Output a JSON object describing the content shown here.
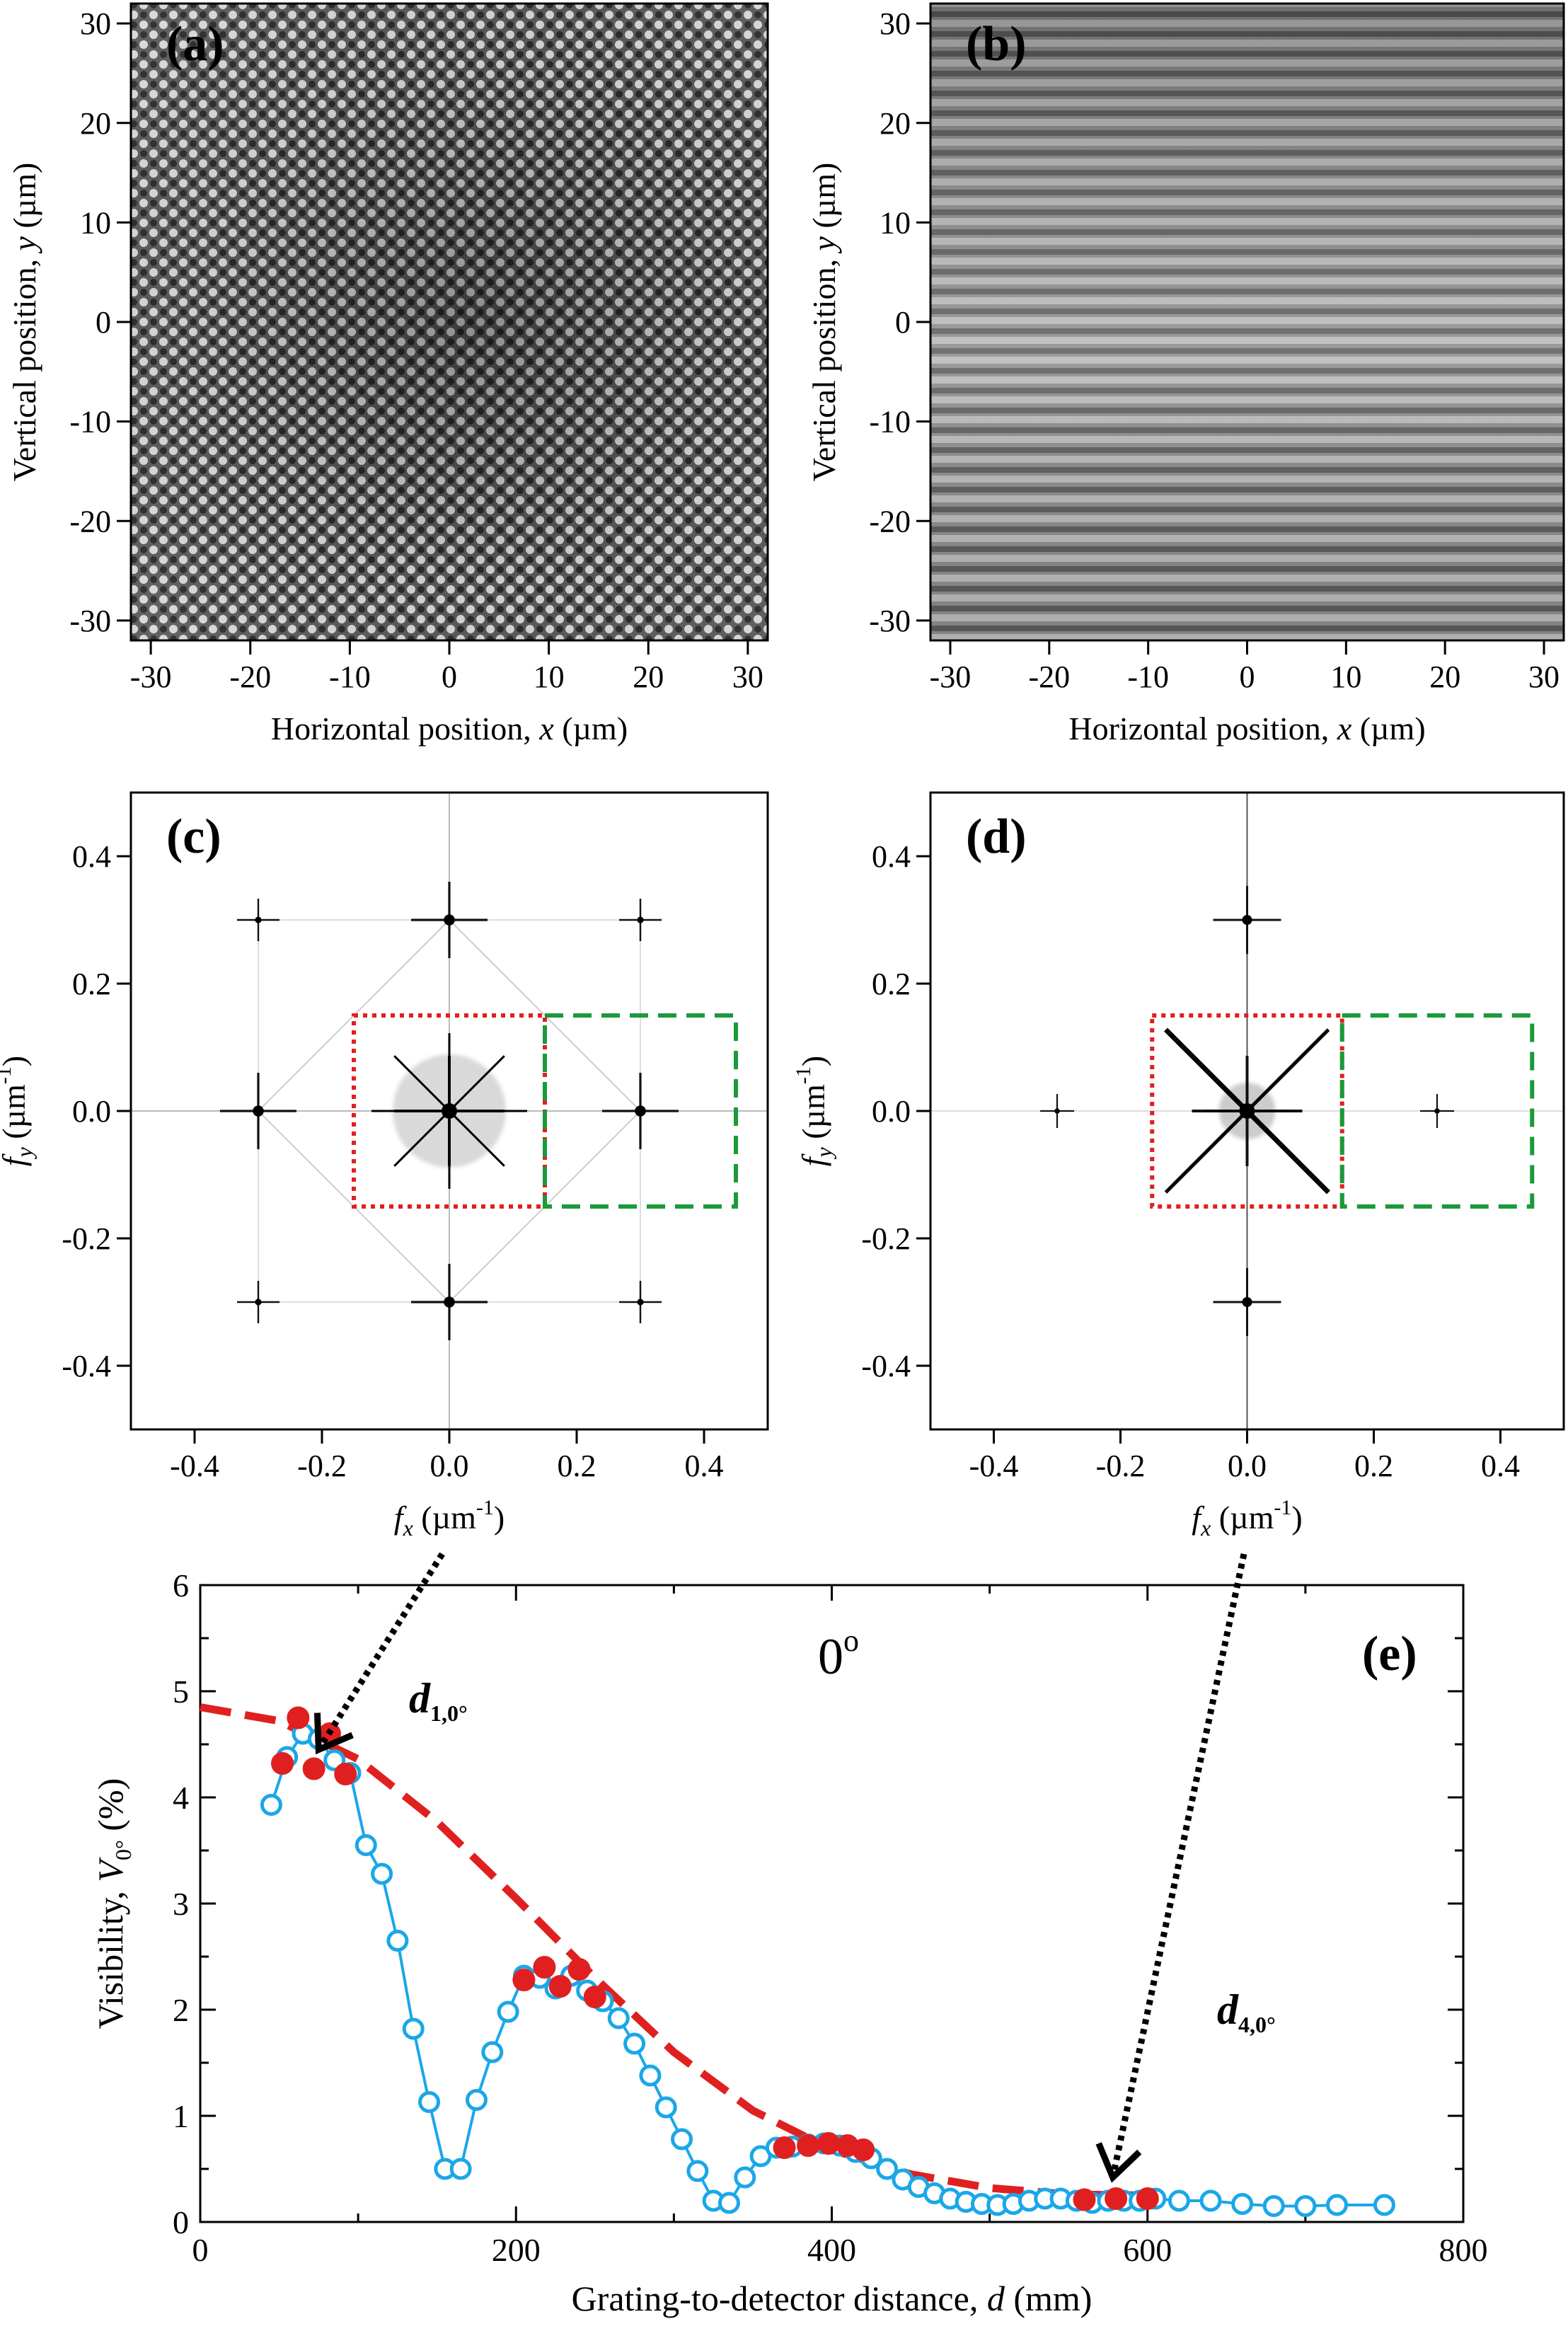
{
  "figure_description_free": true,
  "chart_data": [
    {
      "id": "a",
      "type": "heatmap",
      "panel_label": "(a)",
      "xlabel_prefix": "Horizontal position, ",
      "xlabel_var": "x",
      "xlabel_suffix": " (µm)",
      "ylabel_prefix": "Vertical position, ",
      "ylabel_var": "y",
      "ylabel_suffix": " (µm)",
      "xlim": [
        -32,
        32
      ],
      "ylim": [
        -32,
        32
      ],
      "xticks": [
        -30,
        -20,
        -10,
        0,
        10,
        20,
        30
      ],
      "yticks": [
        -30,
        -20,
        -10,
        0,
        10,
        20,
        30
      ],
      "xtick_labels": [
        "-30",
        "-20",
        "-10",
        "0",
        "10",
        "20",
        "30"
      ],
      "ytick_labels": [
        "-30",
        "-20",
        "-10",
        "0",
        "10",
        "20",
        "30"
      ],
      "pattern": "2D checkerboard grating, period ~3.4 µm"
    },
    {
      "id": "b",
      "type": "heatmap",
      "panel_label": "(b)",
      "xlabel_prefix": "Horizontal position, ",
      "xlabel_var": "x",
      "xlabel_suffix": " (µm)",
      "ylabel_prefix": "Vertical position, ",
      "ylabel_var": "y",
      "ylabel_suffix": " (µm)",
      "xlim": [
        -32,
        32
      ],
      "ylim": [
        -32,
        32
      ],
      "xticks": [
        -30,
        -20,
        -10,
        0,
        10,
        20,
        30
      ],
      "yticks": [
        -30,
        -20,
        -10,
        0,
        10,
        20,
        30
      ],
      "xtick_labels": [
        "-30",
        "-20",
        "-10",
        "0",
        "10",
        "20",
        "30"
      ],
      "ytick_labels": [
        "-30",
        "-20",
        "-10",
        "0",
        "10",
        "20",
        "30"
      ],
      "pattern": "horizontal fringes, period ~3.4 µm"
    },
    {
      "id": "c",
      "type": "heatmap",
      "panel_label": "(c)",
      "xlabel_var": "f",
      "xlabel_sub": "x",
      "xlabel_unit": " (µm",
      "xlabel_exp": "-1",
      "xlabel_close": ")",
      "ylabel_var": "f",
      "ylabel_sub": "y",
      "ylabel_unit": " (µm",
      "ylabel_exp": "-1",
      "ylabel_close": ")",
      "xlim": [
        -0.5,
        0.5
      ],
      "ylim": [
        -0.5,
        0.5
      ],
      "xticks": [
        -0.4,
        -0.2,
        0.0,
        0.2,
        0.4
      ],
      "yticks": [
        -0.4,
        -0.2,
        0.0,
        0.2,
        0.4
      ],
      "xtick_labels": [
        "-0.4",
        "-0.2",
        "0.0",
        "0.2",
        "0.4"
      ],
      "ytick_labels": [
        "-0.4",
        "-0.2",
        "0.0",
        "0.2",
        "0.4"
      ],
      "peaks": [
        [
          0,
          0,
          1.0
        ],
        [
          0.3,
          0,
          0.6
        ],
        [
          -0.3,
          0,
          0.6
        ],
        [
          0,
          0.3,
          0.6
        ],
        [
          0,
          -0.3,
          0.6
        ],
        [
          0.3,
          0.3,
          0.2
        ],
        [
          -0.3,
          0.3,
          0.2
        ],
        [
          0.3,
          -0.3,
          0.2
        ],
        [
          -0.3,
          -0.3,
          0.2
        ]
      ],
      "red_box": [
        -0.15,
        0.15,
        -0.15,
        0.15
      ],
      "green_box": [
        0.15,
        0.45,
        -0.15,
        0.15
      ],
      "red_color": "#e02020",
      "green_color": "#1a9a3a"
    },
    {
      "id": "d",
      "type": "heatmap",
      "panel_label": "(d)",
      "xlabel_var": "f",
      "xlabel_sub": "x",
      "xlabel_unit": " (µm",
      "xlabel_exp": "-1",
      "xlabel_close": ")",
      "ylabel_var": "f",
      "ylabel_sub": "y",
      "ylabel_unit": " (µm",
      "ylabel_exp": "-1",
      "ylabel_close": ")",
      "xlim": [
        -0.5,
        0.5
      ],
      "ylim": [
        -0.5,
        0.5
      ],
      "xticks": [
        -0.4,
        -0.2,
        0.0,
        0.2,
        0.4
      ],
      "yticks": [
        -0.4,
        -0.2,
        0.0,
        0.2,
        0.4
      ],
      "xtick_labels": [
        "-0.4",
        "-0.2",
        "0.0",
        "0.2",
        "0.4"
      ],
      "ytick_labels": [
        "-0.4",
        "-0.2",
        "0.0",
        "0.2",
        "0.4"
      ],
      "peaks": [
        [
          0,
          0,
          1.0
        ],
        [
          0,
          0.3,
          0.5
        ],
        [
          0,
          -0.3,
          0.5
        ],
        [
          0.3,
          0,
          0.1
        ],
        [
          -0.3,
          0,
          0.1
        ]
      ],
      "red_box": [
        -0.15,
        0.15,
        -0.15,
        0.15
      ],
      "green_box": [
        0.15,
        0.45,
        -0.15,
        0.15
      ],
      "red_color": "#e02020",
      "green_color": "#1a9a3a"
    },
    {
      "id": "e",
      "type": "scatter",
      "panel_label": "(e)",
      "title": "0",
      "title_sup": "o",
      "xlabel_prefix": "Grating-to-detector distance, ",
      "xlabel_var": "d",
      "xlabel_suffix": " (mm)",
      "ylabel_prefix": "Visibility, ",
      "ylabel_var": "V",
      "ylabel_sub": "0°",
      "ylabel_suffix": " (%)",
      "xlim": [
        0,
        800
      ],
      "ylim": [
        0,
        6
      ],
      "xticks": [
        0,
        200,
        400,
        600,
        800
      ],
      "yticks": [
        0,
        1,
        2,
        3,
        4,
        5,
        6
      ],
      "xtick_labels": [
        "0",
        "200",
        "400",
        "600",
        "800"
      ],
      "ytick_labels": [
        "0",
        "1",
        "2",
        "3",
        "4",
        "5",
        "6"
      ],
      "series": [
        {
          "name": "measured (open circles)",
          "color": "#1aa7e8",
          "x": [
            45,
            55,
            65,
            75,
            85,
            95,
            105,
            115,
            125,
            135,
            145,
            155,
            165,
            175,
            185,
            195,
            205,
            215,
            225,
            235,
            245,
            255,
            265,
            275,
            285,
            295,
            305,
            315,
            325,
            335,
            345,
            355,
            365,
            375,
            385,
            395,
            405,
            415,
            425,
            435,
            445,
            455,
            465,
            475,
            485,
            495,
            505,
            515,
            525,
            535,
            545,
            555,
            565,
            575,
            585,
            595,
            605,
            620,
            640,
            660,
            680,
            700,
            720,
            750
          ],
          "y": [
            3.93,
            4.38,
            4.6,
            4.55,
            4.35,
            4.23,
            3.55,
            3.28,
            2.65,
            1.82,
            1.13,
            0.5,
            0.5,
            1.15,
            1.6,
            1.98,
            2.32,
            2.3,
            2.2,
            2.32,
            2.18,
            2.08,
            1.92,
            1.68,
            1.38,
            1.08,
            0.78,
            0.48,
            0.2,
            0.18,
            0.42,
            0.62,
            0.7,
            0.71,
            0.73,
            0.74,
            0.72,
            0.66,
            0.6,
            0.5,
            0.4,
            0.33,
            0.27,
            0.22,
            0.19,
            0.17,
            0.16,
            0.17,
            0.2,
            0.22,
            0.22,
            0.2,
            0.18,
            0.2,
            0.2,
            0.2,
            0.22,
            0.2,
            0.2,
            0.17,
            0.15,
            0.15,
            0.16,
            0.16
          ]
        },
        {
          "name": "selected (filled circles)",
          "color": "#e02020",
          "x": [
            52,
            62,
            72,
            82,
            92,
            205,
            218,
            228,
            240,
            250,
            370,
            385,
            398,
            410,
            420,
            560,
            580,
            600
          ],
          "y": [
            4.32,
            4.75,
            4.27,
            4.6,
            4.22,
            2.28,
            2.4,
            2.22,
            2.38,
            2.12,
            0.7,
            0.72,
            0.74,
            0.72,
            0.68,
            0.21,
            0.22,
            0.22
          ]
        },
        {
          "name": "fit (dashed)",
          "color": "#e02020",
          "x": [
            0,
            50,
            100,
            150,
            200,
            250,
            300,
            350,
            400,
            450,
            500,
            550,
            600
          ],
          "y": [
            4.85,
            4.72,
            4.36,
            3.77,
            3.05,
            2.3,
            1.6,
            1.05,
            0.68,
            0.45,
            0.32,
            0.26,
            0.25
          ]
        }
      ],
      "annotations": [
        {
          "var": "d",
          "sub": "1,0°",
          "from_panel": "c",
          "tip": [
            75,
            4.45
          ]
        },
        {
          "var": "d",
          "sub": "4,0°",
          "from_panel": "d",
          "tip": [
            578,
            0.42
          ]
        }
      ]
    }
  ]
}
